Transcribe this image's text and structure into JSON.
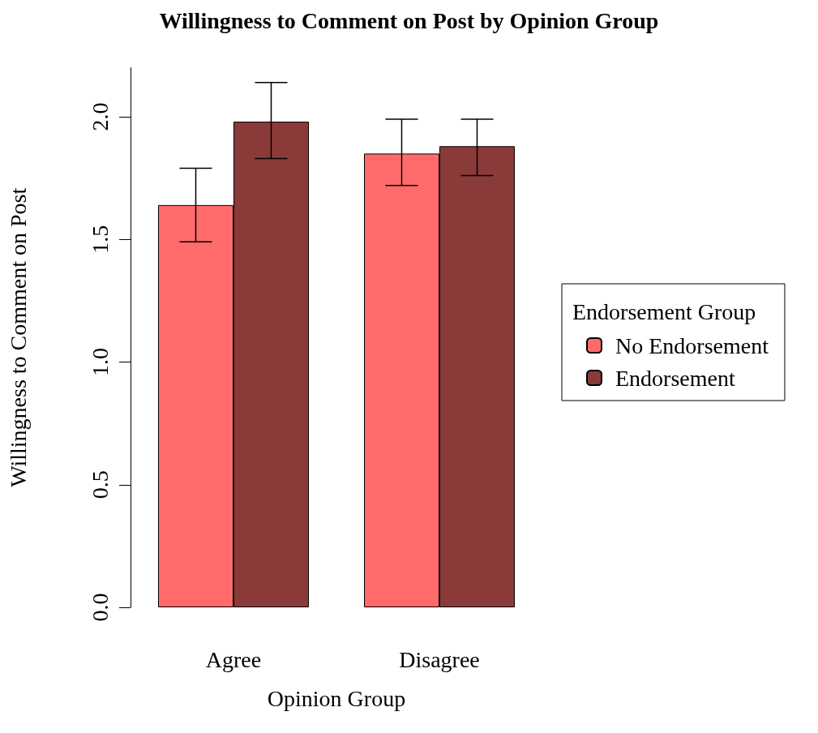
{
  "chart_data": {
    "type": "bar",
    "title": "Willingness to Comment on Post by Opinion Group",
    "xlabel": "Opinion Group",
    "ylabel": "Willingness to Comment on Post",
    "legend_title": "Endorsement Group",
    "categories": [
      "Agree",
      "Disagree"
    ],
    "series": [
      {
        "name": "No Endorsement",
        "color": "#ff6b6b",
        "values": [
          1.64,
          1.85
        ],
        "errors": [
          [
            1.49,
            1.79
          ],
          [
            1.72,
            1.99
          ]
        ]
      },
      {
        "name": "Endorsement",
        "color": "#8b3a3a",
        "values": [
          1.98,
          1.88
        ],
        "errors": [
          [
            1.83,
            2.14
          ],
          [
            1.76,
            1.99
          ]
        ]
      }
    ],
    "ylim": [
      0,
      2.2
    ],
    "yticks": [
      {
        "value": 0,
        "label": "0.0"
      },
      {
        "value": 0.5,
        "label": "0.5"
      },
      {
        "value": 1,
        "label": "1.0"
      },
      {
        "value": 1.5,
        "label": "1.5"
      },
      {
        "value": 2,
        "label": "2.0"
      }
    ],
    "grid": false,
    "legend": "right"
  }
}
